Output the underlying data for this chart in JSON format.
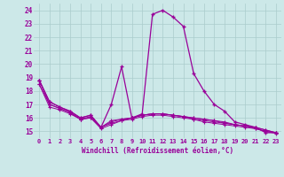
{
  "x_values": [
    0,
    1,
    2,
    3,
    4,
    5,
    6,
    7,
    8,
    9,
    10,
    11,
    12,
    13,
    14,
    15,
    16,
    17,
    18,
    19,
    20,
    21,
    22,
    23
  ],
  "line1": [
    18.8,
    17.2,
    16.8,
    16.5,
    16.0,
    16.2,
    15.3,
    17.0,
    19.8,
    16.0,
    16.3,
    23.7,
    24.0,
    23.5,
    22.8,
    19.3,
    18.0,
    17.0,
    16.5,
    15.7,
    15.5,
    15.3,
    14.9,
    14.9
  ],
  "line2": [
    18.5,
    17.0,
    16.7,
    16.4,
    15.9,
    16.0,
    15.2,
    15.5,
    15.8,
    16.0,
    16.2,
    16.3,
    16.3,
    16.2,
    16.1,
    15.9,
    15.8,
    15.7,
    15.6,
    15.5,
    15.4,
    15.3,
    15.1,
    14.9
  ],
  "line3": [
    18.5,
    16.8,
    16.6,
    16.3,
    15.9,
    16.0,
    15.3,
    15.6,
    15.8,
    15.9,
    16.1,
    16.2,
    16.2,
    16.1,
    16.0,
    15.9,
    15.7,
    15.6,
    15.5,
    15.4,
    15.3,
    15.2,
    15.0,
    14.9
  ],
  "line4": [
    18.8,
    17.0,
    16.7,
    16.4,
    15.9,
    16.1,
    15.3,
    15.7,
    15.9,
    16.0,
    16.2,
    16.3,
    16.3,
    16.2,
    16.1,
    16.0,
    15.9,
    15.8,
    15.6,
    15.5,
    15.4,
    15.3,
    15.1,
    14.9
  ],
  "line5": [
    18.8,
    17.2,
    16.8,
    16.5,
    16.0,
    16.2,
    15.3,
    15.8,
    15.9,
    16.0,
    16.2,
    16.3,
    16.3,
    16.2,
    16.1,
    16.0,
    15.9,
    15.8,
    15.7,
    15.5,
    15.4,
    15.2,
    15.0,
    14.85
  ],
  "color": "#990099",
  "bg_color": "#cce8e8",
  "grid_color": "#aacccc",
  "xlabel": "Windchill (Refroidissement éolien,°C)",
  "ylim": [
    14.5,
    24.5
  ],
  "xlim": [
    -0.5,
    23.5
  ],
  "yticks": [
    15,
    16,
    17,
    18,
    19,
    20,
    21,
    22,
    23,
    24
  ],
  "xticks": [
    0,
    1,
    2,
    3,
    4,
    5,
    6,
    7,
    8,
    9,
    10,
    11,
    12,
    13,
    14,
    15,
    16,
    17,
    18,
    19,
    20,
    21,
    22,
    23
  ]
}
